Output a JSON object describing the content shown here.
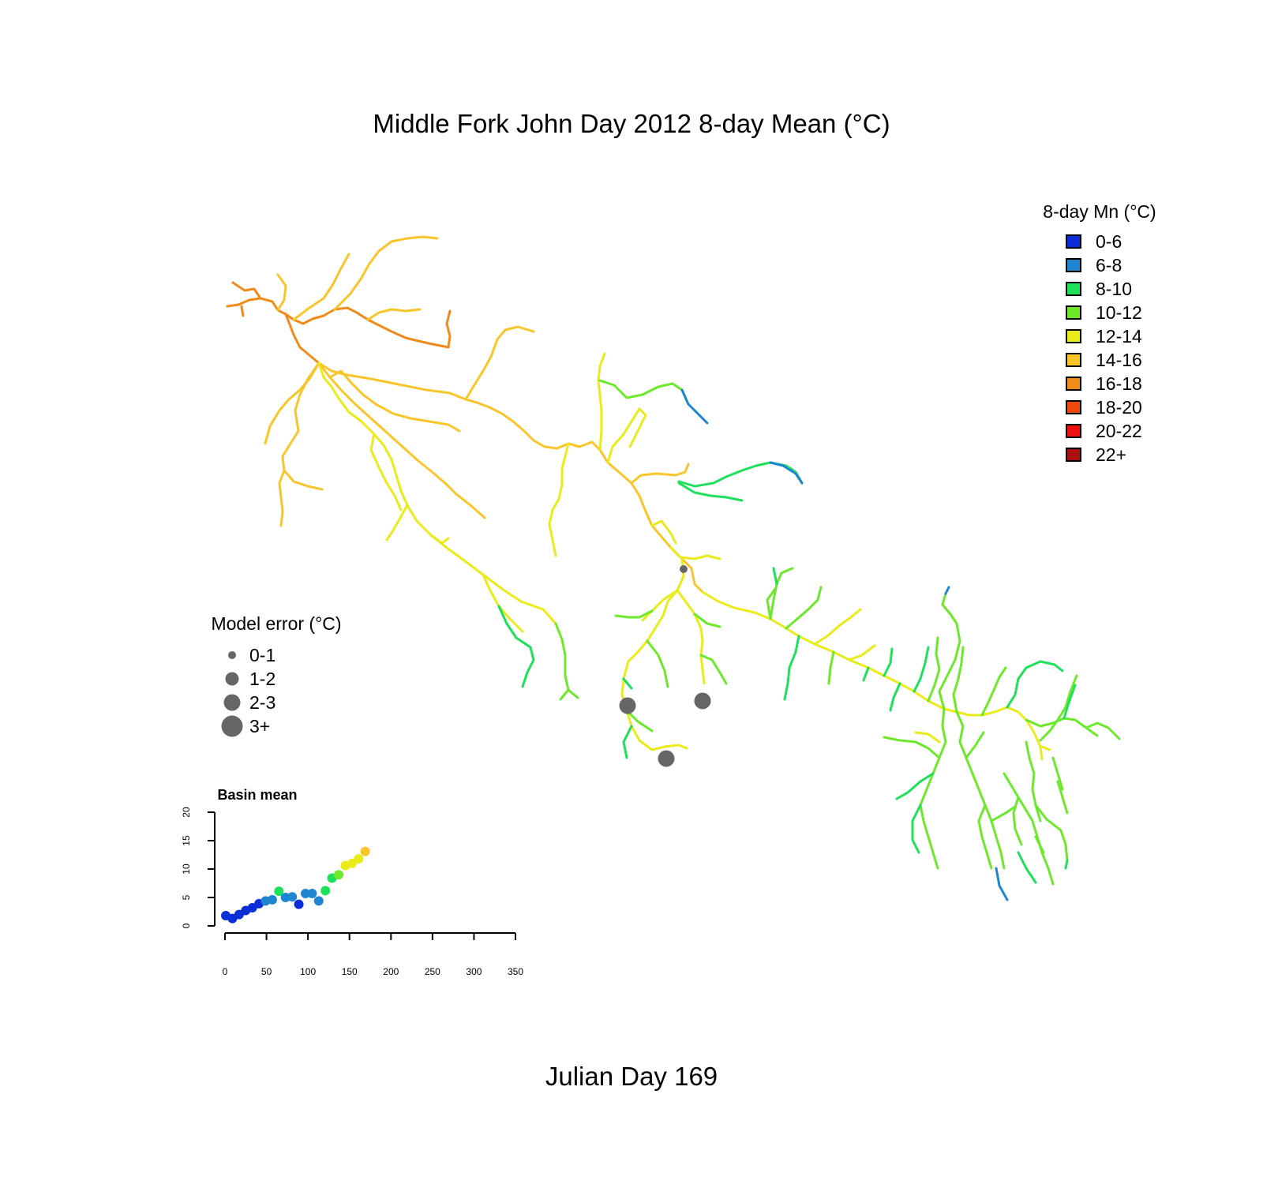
{
  "title": "Middle Fork John Day 2012 8-day Mean (°C)",
  "subtitle": "Julian Day 169",
  "temperature_legend": {
    "title": "8-day Mn (°C)",
    "items": [
      {
        "label": "0-6",
        "color": "#0a2fd8"
      },
      {
        "label": "6-8",
        "color": "#1f85d0"
      },
      {
        "label": "8-10",
        "color": "#1fe05a"
      },
      {
        "label": "10-12",
        "color": "#6de82a"
      },
      {
        "label": "12-14",
        "color": "#e9ec1a"
      },
      {
        "label": "14-16",
        "color": "#f8c52a"
      },
      {
        "label": "16-18",
        "color": "#f08a1a"
      },
      {
        "label": "18-20",
        "color": "#f04a10"
      },
      {
        "label": "20-22",
        "color": "#ee1010"
      },
      {
        "label": "22+",
        "color": "#a80e0e"
      }
    ]
  },
  "error_legend": {
    "title": "Model error (°C)",
    "color": "#666666",
    "items": [
      {
        "label": "0-1"
      },
      {
        "label": "1-2"
      },
      {
        "label": "2-3"
      },
      {
        "label": "3+"
      }
    ]
  },
  "error_sites": [
    {
      "class": 0
    },
    {
      "class": 2
    },
    {
      "class": 2
    },
    {
      "class": 2
    }
  ],
  "inset": {
    "title": "Basin mean",
    "x_ticks": [
      "0",
      "50",
      "100",
      "150",
      "200",
      "250",
      "300",
      "350"
    ],
    "y_ticks": [
      "0",
      "5",
      "10",
      "15",
      "20"
    ]
  },
  "chart_data": {
    "type": "scatter",
    "title": "Basin mean",
    "xlim": [
      0,
      350
    ],
    "ylim": [
      0,
      20
    ],
    "points": [
      {
        "x": 1,
        "y": 1.8,
        "color": "#0a2fd8"
      },
      {
        "x": 9,
        "y": 1.3,
        "color": "#0a2fd8"
      },
      {
        "x": 17,
        "y": 2.0,
        "color": "#0a2fd8"
      },
      {
        "x": 25,
        "y": 2.7,
        "color": "#0a2fd8"
      },
      {
        "x": 33,
        "y": 3.2,
        "color": "#0a2fd8"
      },
      {
        "x": 41,
        "y": 3.9,
        "color": "#0a2fd8"
      },
      {
        "x": 49,
        "y": 4.4,
        "color": "#1f85d0"
      },
      {
        "x": 57,
        "y": 4.6,
        "color": "#1f85d0"
      },
      {
        "x": 65,
        "y": 6.1,
        "color": "#1fe05a"
      },
      {
        "x": 73,
        "y": 5.0,
        "color": "#1f85d0"
      },
      {
        "x": 81,
        "y": 5.1,
        "color": "#1f85d0"
      },
      {
        "x": 89,
        "y": 3.8,
        "color": "#0a2fd8"
      },
      {
        "x": 97,
        "y": 5.7,
        "color": "#1f85d0"
      },
      {
        "x": 105,
        "y": 5.7,
        "color": "#1f85d0"
      },
      {
        "x": 113,
        "y": 4.4,
        "color": "#1f85d0"
      },
      {
        "x": 121,
        "y": 6.2,
        "color": "#1fe05a"
      },
      {
        "x": 129,
        "y": 8.4,
        "color": "#1fe05a"
      },
      {
        "x": 137,
        "y": 9.0,
        "color": "#6de82a"
      },
      {
        "x": 145,
        "y": 10.6,
        "color": "#e9ec1a"
      },
      {
        "x": 153,
        "y": 11.0,
        "color": "#e9ec1a"
      },
      {
        "x": 161,
        "y": 11.8,
        "color": "#e9ec1a"
      },
      {
        "x": 169,
        "y": 13.1,
        "color": "#f8c52a"
      }
    ]
  }
}
